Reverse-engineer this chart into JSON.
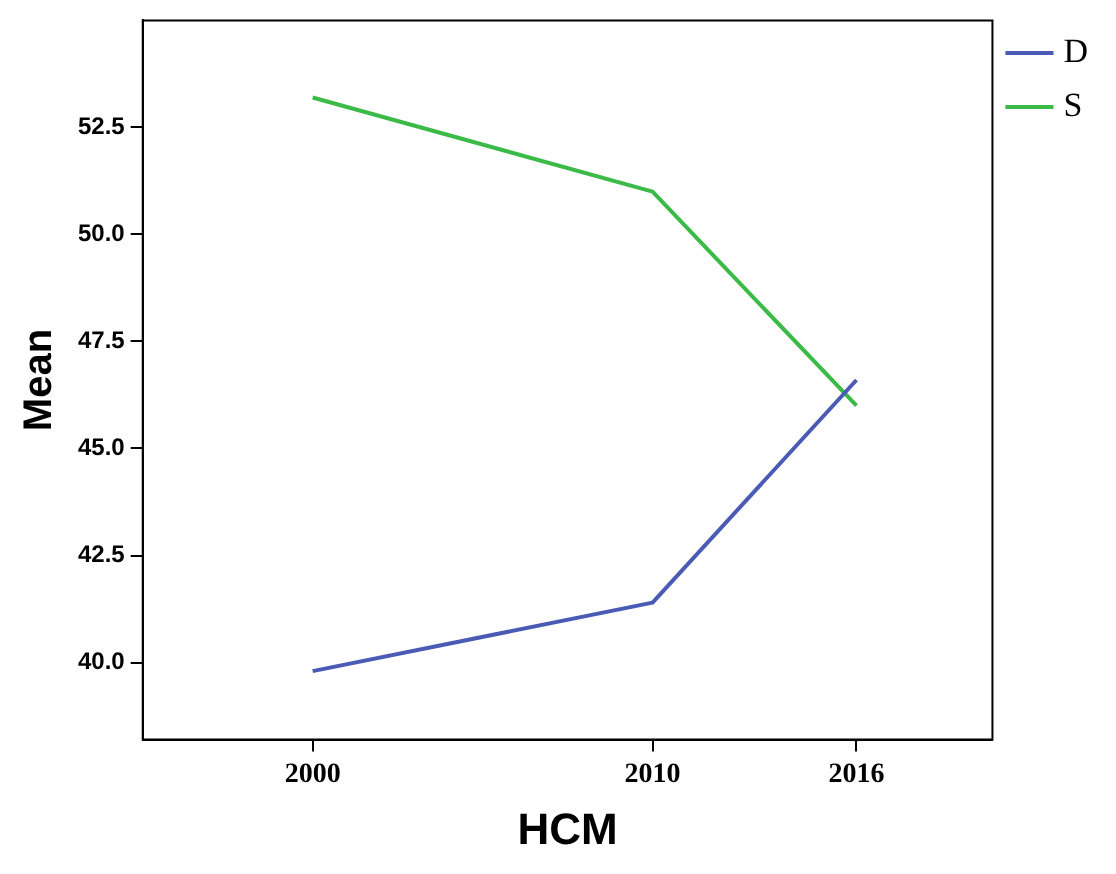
{
  "chart_data": {
    "type": "line",
    "xlabel": "HCM",
    "ylabel": "Mean",
    "x": [
      2000,
      2010,
      2016
    ],
    "series": [
      {
        "name": "D",
        "color": "#4a5bb5",
        "values": [
          39.8,
          41.4,
          46.6
        ]
      },
      {
        "name": "S",
        "color": "#3cba48",
        "values": [
          53.2,
          51.0,
          46.0
        ]
      }
    ],
    "xlim": [
      1995,
      2020
    ],
    "xticks": [
      2000,
      2010,
      2016
    ],
    "ylim": [
      38.2,
      55
    ],
    "yticks": [
      {
        "value": 40,
        "label": "40.0"
      },
      42.5,
      {
        "value": 45,
        "label": "45.0"
      },
      47.5,
      {
        "value": 50,
        "label": "50.0"
      },
      52.5
    ],
    "grid": false,
    "legend": "top right",
    "marker": "none",
    "line_style": "solid"
  }
}
